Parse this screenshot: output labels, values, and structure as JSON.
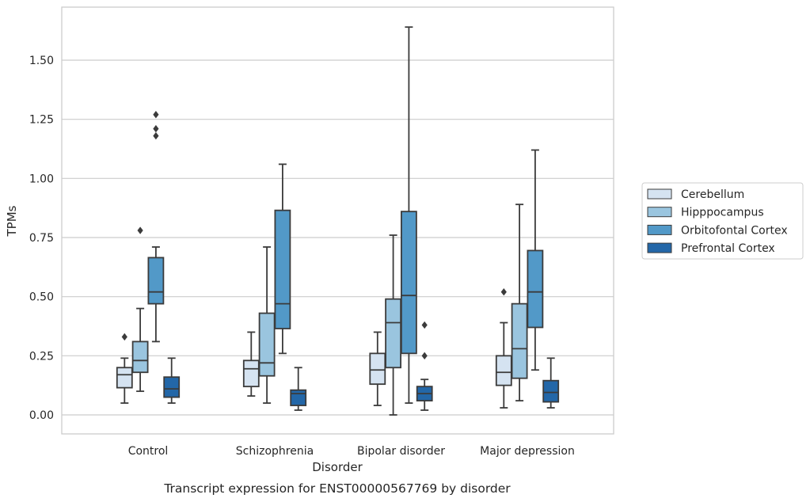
{
  "chart_data": {
    "type": "box",
    "title": "",
    "caption": "Transcript expression for ENST00000567769 by disorder",
    "xlabel": "Disorder",
    "ylabel": "TPMs",
    "ylim": [
      -0.08,
      1.72
    ],
    "yticks": [
      0.0,
      0.25,
      0.5,
      0.75,
      1.0,
      1.25,
      1.5
    ],
    "ytick_labels": [
      "0.00",
      "0.25",
      "0.50",
      "0.75",
      "1.00",
      "1.25",
      "1.50"
    ],
    "grid": "horizontal",
    "legend_position": "right",
    "categories": [
      "Control",
      "Schizophrenia",
      "Bipolar disorder",
      "Major depression"
    ],
    "series": [
      {
        "name": "Cerebellum",
        "color": "#d5e3f1",
        "boxes": [
          {
            "whisker_low": 0.05,
            "q1": 0.115,
            "median": 0.17,
            "q3": 0.2,
            "whisker_high": 0.24,
            "outliers": [
              0.33
            ]
          },
          {
            "whisker_low": 0.08,
            "q1": 0.12,
            "median": 0.195,
            "q3": 0.23,
            "whisker_high": 0.35,
            "outliers": []
          },
          {
            "whisker_low": 0.04,
            "q1": 0.13,
            "median": 0.19,
            "q3": 0.26,
            "whisker_high": 0.35,
            "outliers": []
          },
          {
            "whisker_low": 0.03,
            "q1": 0.125,
            "median": 0.18,
            "q3": 0.25,
            "whisker_high": 0.39,
            "outliers": [
              0.52
            ]
          }
        ]
      },
      {
        "name": "Hipppocampus",
        "color": "#9ac5df",
        "boxes": [
          {
            "whisker_low": 0.1,
            "q1": 0.18,
            "median": 0.23,
            "q3": 0.31,
            "whisker_high": 0.45,
            "outliers": [
              0.78
            ]
          },
          {
            "whisker_low": 0.05,
            "q1": 0.165,
            "median": 0.22,
            "q3": 0.43,
            "whisker_high": 0.71,
            "outliers": []
          },
          {
            "whisker_low": 0.0,
            "q1": 0.2,
            "median": 0.39,
            "q3": 0.49,
            "whisker_high": 0.76,
            "outliers": []
          },
          {
            "whisker_low": 0.06,
            "q1": 0.155,
            "median": 0.28,
            "q3": 0.47,
            "whisker_high": 0.89,
            "outliers": []
          }
        ]
      },
      {
        "name": "Orbitofontal Cortex",
        "color": "#5299c8",
        "boxes": [
          {
            "whisker_low": 0.31,
            "q1": 0.47,
            "median": 0.52,
            "q3": 0.665,
            "whisker_high": 0.71,
            "outliers": [
              1.18,
              1.21,
              1.27
            ]
          },
          {
            "whisker_low": 0.26,
            "q1": 0.365,
            "median": 0.47,
            "q3": 0.865,
            "whisker_high": 1.06,
            "outliers": []
          },
          {
            "whisker_low": 0.05,
            "q1": 0.26,
            "median": 0.505,
            "q3": 0.86,
            "whisker_high": 1.64,
            "outliers": []
          },
          {
            "whisker_low": 0.19,
            "q1": 0.37,
            "median": 0.52,
            "q3": 0.695,
            "whisker_high": 1.12,
            "outliers": []
          }
        ]
      },
      {
        "name": "Prefrontal Cortex",
        "color": "#2367a8",
        "boxes": [
          {
            "whisker_low": 0.05,
            "q1": 0.075,
            "median": 0.11,
            "q3": 0.16,
            "whisker_high": 0.24,
            "outliers": []
          },
          {
            "whisker_low": 0.02,
            "q1": 0.04,
            "median": 0.09,
            "q3": 0.105,
            "whisker_high": 0.2,
            "outliers": []
          },
          {
            "whisker_low": 0.02,
            "q1": 0.06,
            "median": 0.09,
            "q3": 0.12,
            "whisker_high": 0.15,
            "outliers": [
              0.25,
              0.38
            ]
          },
          {
            "whisker_low": 0.03,
            "q1": 0.055,
            "median": 0.095,
            "q3": 0.145,
            "whisker_high": 0.24,
            "outliers": []
          }
        ]
      }
    ]
  }
}
